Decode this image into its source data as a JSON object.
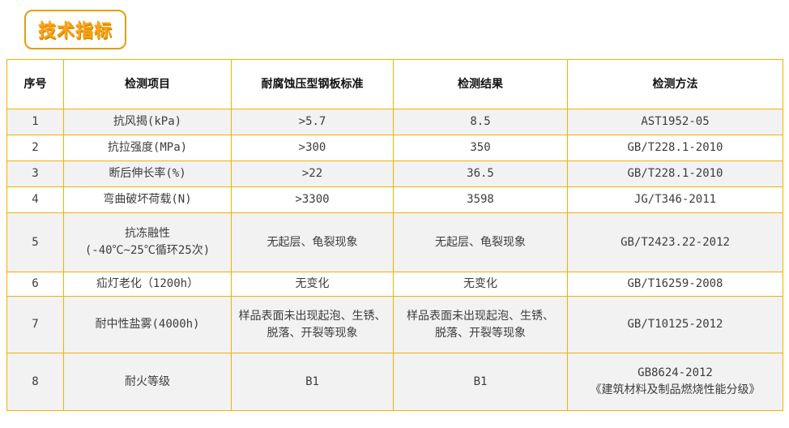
{
  "page_title": "技术指标",
  "colors": {
    "accent_border": "#efb300",
    "badge_text": "#ffa216",
    "row_alt": "#f2f2f2"
  },
  "table": {
    "headers": {
      "no": "序号",
      "item": "检测项目",
      "standard": "耐腐蚀压型钢板标准",
      "result": "检测结果",
      "method": "检测方法"
    },
    "rows": [
      {
        "no": "1",
        "item": "抗风揭(kPa)",
        "standard": ">5.7",
        "result": "8.5",
        "method": "AST1952-05"
      },
      {
        "no": "2",
        "item": "抗拉强度(MPa)",
        "standard": ">300",
        "result": "350",
        "method": "GB/T228.1-2010"
      },
      {
        "no": "3",
        "item": "断后伸长率(%)",
        "standard": ">22",
        "result": "36.5",
        "method": "GB/T228.1-2010"
      },
      {
        "no": "4",
        "item": "弯曲破坏荷载(N)",
        "standard": ">3300",
        "result": "3598",
        "method": "JG/T346-2011"
      },
      {
        "no": "5",
        "item": "抗冻融性\n(-40℃~25℃循环25次)",
        "standard": "无起层、龟裂现象",
        "result": "无起层、龟裂现象",
        "method": "GB/T2423.22-2012"
      },
      {
        "no": "6",
        "item": "疝灯老化（1200h）",
        "standard": "无变化",
        "result": "无变化",
        "method": "GB/T16259-2008"
      },
      {
        "no": "7",
        "item": "耐中性盐雾(4000h)",
        "standard": "样品表面未出现起泡、生锈、\n脱落、开裂等现象",
        "result": "样品表面未出现起泡、生锈、\n脱落、开裂等现象",
        "method": "GB/T10125-2012"
      },
      {
        "no": "8",
        "item": "耐火等级",
        "standard": "B1",
        "result": "B1",
        "method": "GB8624-2012\n《建筑材料及制品燃烧性能分级》"
      }
    ]
  }
}
